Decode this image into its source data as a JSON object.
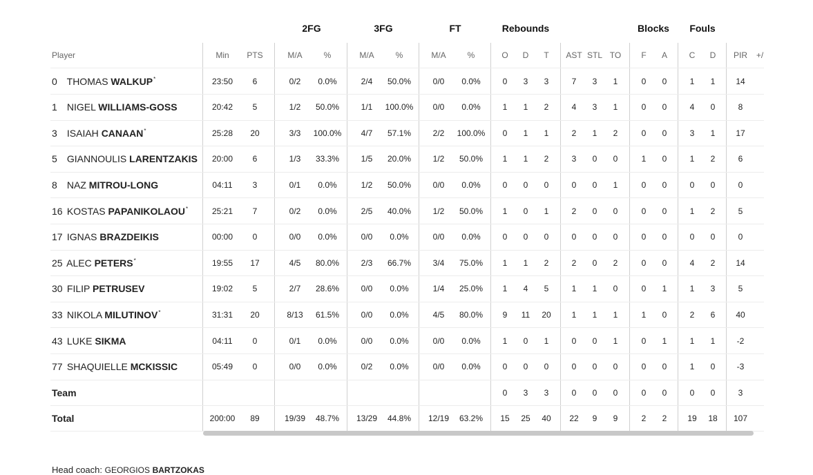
{
  "groups": {
    "fg2": "2FG",
    "fg3": "3FG",
    "ft": "FT",
    "reb": "Rebounds",
    "blocks": "Blocks",
    "fouls": "Fouls"
  },
  "headers": {
    "player": "Player",
    "min": "Min",
    "pts": "PTS",
    "fg2_ma": "M/A",
    "fg2_pct": "%",
    "fg3_ma": "M/A",
    "fg3_pct": "%",
    "ft_ma": "M/A",
    "ft_pct": "%",
    "reb_o": "O",
    "reb_d": "D",
    "reb_t": "T",
    "ast": "AST",
    "stl": "STL",
    "to": "TO",
    "blk_f": "F",
    "blk_a": "A",
    "foul_c": "C",
    "foul_d": "D",
    "pir": "PIR",
    "pm": "+/"
  },
  "rows": [
    {
      "num": "0",
      "first": "THOMAS",
      "last": "WALKUP",
      "star": "*",
      "min": "23:50",
      "pts": "6",
      "fg2": "0/2",
      "fg2p": "0.0%",
      "fg3": "2/4",
      "fg3p": "50.0%",
      "ft": "0/0",
      "ftp": "0.0%",
      "o": "0",
      "d": "3",
      "t": "3",
      "ast": "7",
      "stl": "3",
      "to": "1",
      "bf": "0",
      "ba": "0",
      "fc": "1",
      "fd": "1",
      "pir": "14"
    },
    {
      "num": "1",
      "first": "NIGEL",
      "last": "WILLIAMS-GOSS",
      "star": "",
      "min": "20:42",
      "pts": "5",
      "fg2": "1/2",
      "fg2p": "50.0%",
      "fg3": "1/1",
      "fg3p": "100.0%",
      "ft": "0/0",
      "ftp": "0.0%",
      "o": "1",
      "d": "1",
      "t": "2",
      "ast": "4",
      "stl": "3",
      "to": "1",
      "bf": "0",
      "ba": "0",
      "fc": "4",
      "fd": "0",
      "pir": "8"
    },
    {
      "num": "3",
      "first": "ISAIAH",
      "last": "CANAAN",
      "star": "*",
      "min": "25:28",
      "pts": "20",
      "fg2": "3/3",
      "fg2p": "100.0%",
      "fg3": "4/7",
      "fg3p": "57.1%",
      "ft": "2/2",
      "ftp": "100.0%",
      "o": "0",
      "d": "1",
      "t": "1",
      "ast": "2",
      "stl": "1",
      "to": "2",
      "bf": "0",
      "ba": "0",
      "fc": "3",
      "fd": "1",
      "pir": "17"
    },
    {
      "num": "5",
      "first": "GIANNOULIS",
      "last": "LARENTZAKIS",
      "star": "",
      "min": "20:00",
      "pts": "6",
      "fg2": "1/3",
      "fg2p": "33.3%",
      "fg3": "1/5",
      "fg3p": "20.0%",
      "ft": "1/2",
      "ftp": "50.0%",
      "o": "1",
      "d": "1",
      "t": "2",
      "ast": "3",
      "stl": "0",
      "to": "0",
      "bf": "1",
      "ba": "0",
      "fc": "1",
      "fd": "2",
      "pir": "6"
    },
    {
      "num": "8",
      "first": "NAZ",
      "last": "MITROU-LONG",
      "star": "",
      "min": "04:11",
      "pts": "3",
      "fg2": "0/1",
      "fg2p": "0.0%",
      "fg3": "1/2",
      "fg3p": "50.0%",
      "ft": "0/0",
      "ftp": "0.0%",
      "o": "0",
      "d": "0",
      "t": "0",
      "ast": "0",
      "stl": "0",
      "to": "1",
      "bf": "0",
      "ba": "0",
      "fc": "0",
      "fd": "0",
      "pir": "0"
    },
    {
      "num": "16",
      "first": "KOSTAS",
      "last": "PAPANIKOLAOU",
      "star": "*",
      "min": "25:21",
      "pts": "7",
      "fg2": "0/2",
      "fg2p": "0.0%",
      "fg3": "2/5",
      "fg3p": "40.0%",
      "ft": "1/2",
      "ftp": "50.0%",
      "o": "1",
      "d": "0",
      "t": "1",
      "ast": "2",
      "stl": "0",
      "to": "0",
      "bf": "0",
      "ba": "0",
      "fc": "1",
      "fd": "2",
      "pir": "5"
    },
    {
      "num": "17",
      "first": "IGNAS",
      "last": "BRAZDEIKIS",
      "star": "",
      "min": "00:00",
      "pts": "0",
      "fg2": "0/0",
      "fg2p": "0.0%",
      "fg3": "0/0",
      "fg3p": "0.0%",
      "ft": "0/0",
      "ftp": "0.0%",
      "o": "0",
      "d": "0",
      "t": "0",
      "ast": "0",
      "stl": "0",
      "to": "0",
      "bf": "0",
      "ba": "0",
      "fc": "0",
      "fd": "0",
      "pir": "0"
    },
    {
      "num": "25",
      "first": "ALEC",
      "last": "PETERS",
      "star": "*",
      "min": "19:55",
      "pts": "17",
      "fg2": "4/5",
      "fg2p": "80.0%",
      "fg3": "2/3",
      "fg3p": "66.7%",
      "ft": "3/4",
      "ftp": "75.0%",
      "o": "1",
      "d": "1",
      "t": "2",
      "ast": "2",
      "stl": "0",
      "to": "2",
      "bf": "0",
      "ba": "0",
      "fc": "4",
      "fd": "2",
      "pir": "14"
    },
    {
      "num": "30",
      "first": "FILIP",
      "last": "PETRUSEV",
      "star": "",
      "min": "19:02",
      "pts": "5",
      "fg2": "2/7",
      "fg2p": "28.6%",
      "fg3": "0/0",
      "fg3p": "0.0%",
      "ft": "1/4",
      "ftp": "25.0%",
      "o": "1",
      "d": "4",
      "t": "5",
      "ast": "1",
      "stl": "1",
      "to": "0",
      "bf": "0",
      "ba": "1",
      "fc": "1",
      "fd": "3",
      "pir": "5"
    },
    {
      "num": "33",
      "first": "NIKOLA",
      "last": "MILUTINOV",
      "star": "*",
      "min": "31:31",
      "pts": "20",
      "fg2": "8/13",
      "fg2p": "61.5%",
      "fg3": "0/0",
      "fg3p": "0.0%",
      "ft": "4/5",
      "ftp": "80.0%",
      "o": "9",
      "d": "11",
      "t": "20",
      "ast": "1",
      "stl": "1",
      "to": "1",
      "bf": "1",
      "ba": "0",
      "fc": "2",
      "fd": "6",
      "pir": "40"
    },
    {
      "num": "43",
      "first": "LUKE",
      "last": "SIKMA",
      "star": "",
      "min": "04:11",
      "pts": "0",
      "fg2": "0/1",
      "fg2p": "0.0%",
      "fg3": "0/0",
      "fg3p": "0.0%",
      "ft": "0/0",
      "ftp": "0.0%",
      "o": "1",
      "d": "0",
      "t": "1",
      "ast": "0",
      "stl": "0",
      "to": "1",
      "bf": "0",
      "ba": "1",
      "fc": "1",
      "fd": "1",
      "pir": "-2"
    },
    {
      "num": "77",
      "first": "SHAQUIELLE",
      "last": "MCKISSIC",
      "star": "",
      "min": "05:49",
      "pts": "0",
      "fg2": "0/0",
      "fg2p": "0.0%",
      "fg3": "0/2",
      "fg3p": "0.0%",
      "ft": "0/0",
      "ftp": "0.0%",
      "o": "0",
      "d": "0",
      "t": "0",
      "ast": "0",
      "stl": "0",
      "to": "0",
      "bf": "0",
      "ba": "0",
      "fc": "1",
      "fd": "0",
      "pir": "-3"
    }
  ],
  "team": {
    "label": "Team",
    "o": "0",
    "d": "3",
    "t": "3",
    "ast": "0",
    "stl": "0",
    "to": "0",
    "bf": "0",
    "ba": "0",
    "fc": "0",
    "fd": "0",
    "pir": "3"
  },
  "total": {
    "label": "Total",
    "min": "200:00",
    "pts": "89",
    "fg2": "19/39",
    "fg2p": "48.7%",
    "fg3": "13/29",
    "fg3p": "44.8%",
    "ft": "12/19",
    "ftp": "63.2%",
    "o": "15",
    "d": "25",
    "t": "40",
    "ast": "22",
    "stl": "9",
    "to": "9",
    "bf": "2",
    "ba": "2",
    "fc": "19",
    "fd": "18",
    "pir": "107"
  },
  "coach": {
    "label": "Head coach:",
    "first": "GEORGIOS",
    "last": "BARTZOKAS"
  }
}
